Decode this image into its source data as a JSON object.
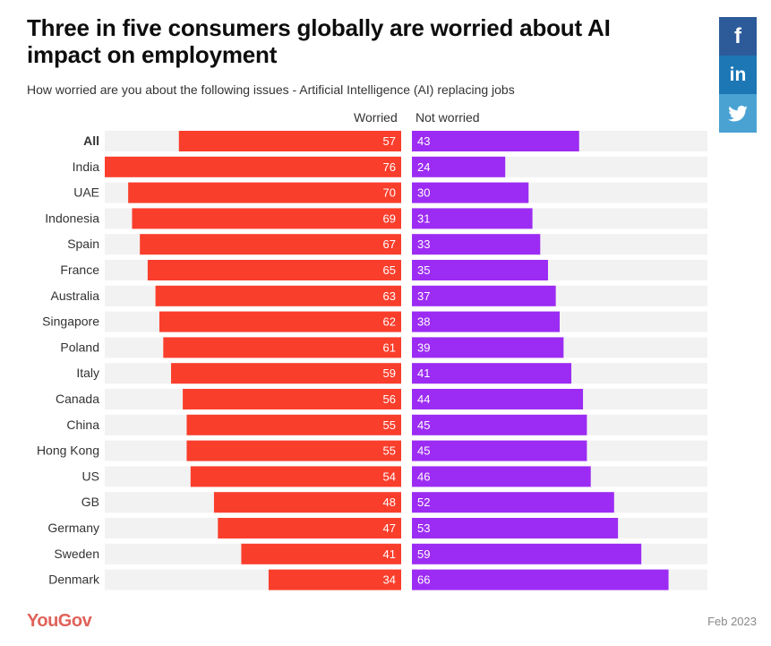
{
  "header": {
    "title": "Three in five consumers globally are worried about AI impact on employment",
    "subtitle": "How worried are you about the following issues - Artificial Intelligence (AI) replacing jobs"
  },
  "share": {
    "facebook": "f",
    "linkedin": "in",
    "twitter_icon": "twitter-icon"
  },
  "footer": {
    "brand": "YouGov",
    "date": "Feb 2023"
  },
  "colors": {
    "worried": "#fa3e2c",
    "not_worried": "#9c2cf3",
    "track": "#f2f2f2"
  },
  "chart_data": {
    "type": "bar",
    "orientation": "horizontal-diverging",
    "title": "Three in five consumers globally are worried about AI impact on employment",
    "subtitle": "How worried are you about the following issues - Artificial Intelligence (AI) replacing jobs",
    "categories": [
      "All",
      "India",
      "UAE",
      "Indonesia",
      "Spain",
      "France",
      "Australia",
      "Singapore",
      "Poland",
      "Italy",
      "Canada",
      "China",
      "Hong Kong",
      "US",
      "GB",
      "Germany",
      "Sweden",
      "Denmark"
    ],
    "series": [
      {
        "name": "Worried",
        "values": [
          57,
          76,
          70,
          69,
          67,
          65,
          63,
          62,
          61,
          59,
          56,
          55,
          55,
          54,
          48,
          47,
          41,
          34
        ]
      },
      {
        "name": "Not worried",
        "values": [
          43,
          24,
          30,
          31,
          33,
          35,
          37,
          38,
          39,
          41,
          44,
          45,
          45,
          46,
          52,
          53,
          59,
          66
        ]
      }
    ],
    "xlim": [
      0,
      76
    ],
    "units": "%",
    "legend": "top-center"
  }
}
